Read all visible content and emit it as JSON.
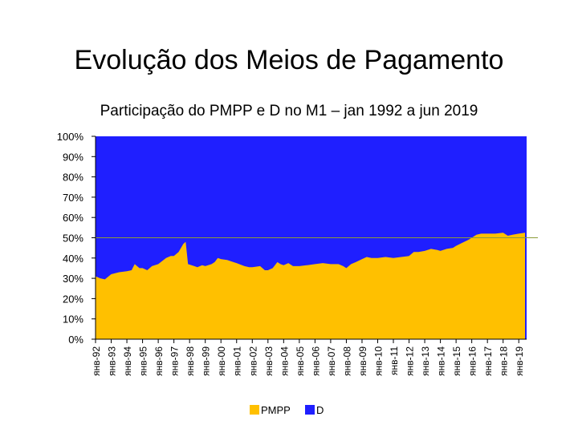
{
  "header": {
    "title": "Evolução dos Meios de Pagamento",
    "subtitle": "Participação do PMPP e D no M1 – jan 1992 a jun 2019"
  },
  "chart_data": {
    "type": "area",
    "stacked": true,
    "percent": true,
    "title": "Evolução dos Meios de Pagamento",
    "subtitle": "Participação do PMPP e D no M1 – jan 1992 a jun 2019",
    "categories": [
      "янв-92",
      "янв-93",
      "янв-94",
      "янв-95",
      "янв-96",
      "янв-97",
      "янв-98",
      "янв-99",
      "янв-00",
      "янв-01",
      "янв-02",
      "янв-03",
      "янв-04",
      "янв-05",
      "янв-06",
      "янв-07",
      "янв-08",
      "янв-09",
      "янв-10",
      "янв-11",
      "янв-12",
      "янв-13",
      "янв-14",
      "янв-15",
      "янв-16",
      "янв-17",
      "янв-18",
      "янв-19"
    ],
    "ylim": [
      0,
      100
    ],
    "yticks": [
      "0%",
      "10%",
      "20%",
      "30%",
      "40%",
      "50%",
      "60%",
      "70%",
      "80%",
      "90%",
      "100%"
    ],
    "reference_line": 50,
    "series": [
      {
        "name": "PMPP",
        "color": "#FFC000",
        "points": [
          [
            1992.0,
            31
          ],
          [
            1992.3,
            30
          ],
          [
            1992.6,
            29.5
          ],
          [
            1993.0,
            32
          ],
          [
            1993.5,
            33
          ],
          [
            1994.0,
            33.5
          ],
          [
            1994.3,
            34
          ],
          [
            1994.5,
            37
          ],
          [
            1994.8,
            35
          ],
          [
            1995.0,
            35
          ],
          [
            1995.3,
            34
          ],
          [
            1995.6,
            36
          ],
          [
            1996.0,
            37
          ],
          [
            1996.5,
            40
          ],
          [
            1996.8,
            41
          ],
          [
            1997.0,
            41
          ],
          [
            1997.3,
            43
          ],
          [
            1997.6,
            47
          ],
          [
            1997.75,
            48
          ],
          [
            1997.9,
            37
          ],
          [
            1998.3,
            36
          ],
          [
            1998.5,
            35.5
          ],
          [
            1998.8,
            36.5
          ],
          [
            1999.0,
            36
          ],
          [
            1999.4,
            37
          ],
          [
            1999.6,
            38
          ],
          [
            1999.8,
            40
          ],
          [
            2000.0,
            39.5
          ],
          [
            2000.4,
            39
          ],
          [
            2000.8,
            38
          ],
          [
            2001.0,
            37.5
          ],
          [
            2001.5,
            36
          ],
          [
            2001.8,
            35.5
          ],
          [
            2002.0,
            35.5
          ],
          [
            2002.5,
            36
          ],
          [
            2002.8,
            34
          ],
          [
            2003.0,
            34
          ],
          [
            2003.3,
            35
          ],
          [
            2003.6,
            38
          ],
          [
            2003.8,
            37
          ],
          [
            2004.0,
            36.5
          ],
          [
            2004.3,
            37.5
          ],
          [
            2004.6,
            36
          ],
          [
            2005.0,
            36
          ],
          [
            2005.5,
            36.5
          ],
          [
            2006.0,
            37
          ],
          [
            2006.5,
            37.5
          ],
          [
            2007.0,
            37
          ],
          [
            2007.5,
            37
          ],
          [
            2007.8,
            36
          ],
          [
            2008.0,
            35
          ],
          [
            2008.3,
            37
          ],
          [
            2008.6,
            38
          ],
          [
            2009.0,
            39.5
          ],
          [
            2009.3,
            40.5
          ],
          [
            2009.6,
            40
          ],
          [
            2010.0,
            40
          ],
          [
            2010.5,
            40.5
          ],
          [
            2011.0,
            40
          ],
          [
            2011.5,
            40.5
          ],
          [
            2012.0,
            41
          ],
          [
            2012.3,
            43
          ],
          [
            2012.6,
            43
          ],
          [
            2013.0,
            43.5
          ],
          [
            2013.4,
            44.5
          ],
          [
            2013.8,
            44
          ],
          [
            2014.0,
            43.5
          ],
          [
            2014.4,
            44.5
          ],
          [
            2014.8,
            45
          ],
          [
            2015.0,
            46
          ],
          [
            2015.4,
            47.5
          ],
          [
            2015.8,
            49
          ],
          [
            2016.0,
            50
          ],
          [
            2016.3,
            51.5
          ],
          [
            2016.6,
            52
          ],
          [
            2017.0,
            52
          ],
          [
            2017.5,
            52
          ],
          [
            2018.0,
            52.5
          ],
          [
            2018.3,
            51
          ],
          [
            2018.6,
            51.5
          ],
          [
            2019.0,
            52
          ],
          [
            2019.4,
            52.5
          ]
        ]
      },
      {
        "name": "D",
        "color": "#1F1FFF"
      }
    ],
    "legend": {
      "position": "bottom",
      "entries": [
        "PMPP",
        "D"
      ]
    }
  }
}
